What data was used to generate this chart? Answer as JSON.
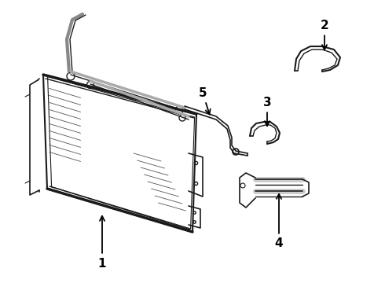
{
  "bg_color": "#ffffff",
  "line_color": "#1a1a1a",
  "lw": 1.0,
  "fig_w": 4.9,
  "fig_h": 3.6,
  "dpi": 100
}
